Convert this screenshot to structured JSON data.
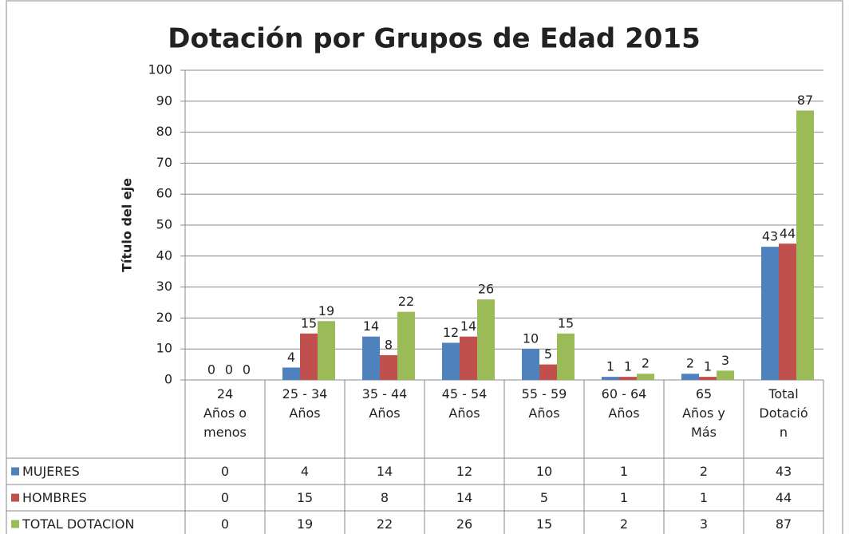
{
  "chart_data": {
    "type": "bar",
    "title": "Dotación por Grupos de Edad 2015",
    "y_label": "Título del eje",
    "categories": [
      "24 Años o menos",
      "25 - 34 Años",
      "35 - 44 Años",
      "45 - 54 Años",
      "55 - 59 Años",
      "60 - 64 Años",
      "65 Años y Más",
      "Total Dotación"
    ],
    "series": [
      {
        "name": "MUJERES",
        "color": "#4f81bd",
        "values": [
          0,
          4,
          14,
          12,
          10,
          1,
          2,
          43
        ]
      },
      {
        "name": "HOMBRES",
        "color": "#c0504d",
        "values": [
          0,
          15,
          8,
          14,
          5,
          1,
          1,
          44
        ]
      },
      {
        "name": "TOTAL DOTACION",
        "color": "#9bbb59",
        "values": [
          0,
          19,
          22,
          26,
          15,
          2,
          3,
          87
        ]
      }
    ],
    "ylim": [
      0,
      100
    ],
    "yticks": [
      0,
      10,
      20,
      30,
      40,
      50,
      60,
      70,
      80,
      90,
      100
    ],
    "grid": true,
    "data_table": true
  }
}
